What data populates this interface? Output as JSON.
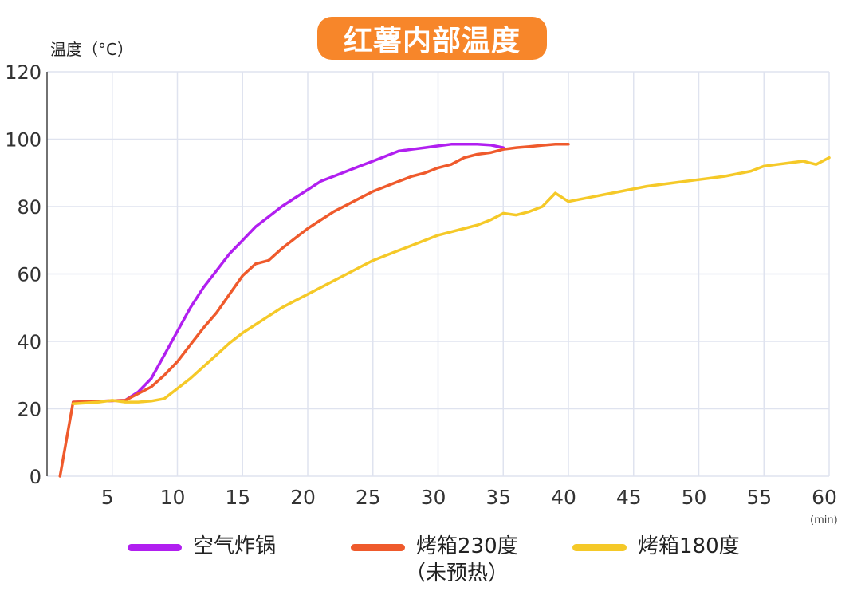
{
  "chart_data": {
    "type": "line",
    "title": "红薯内部温度",
    "ylabel": "温度（°C）",
    "xlabel": "(min)",
    "xlim": [
      0,
      60
    ],
    "ylim": [
      0,
      120
    ],
    "xticks": [
      5,
      10,
      15,
      20,
      25,
      30,
      35,
      40,
      45,
      50,
      55,
      60
    ],
    "yticks": [
      0,
      20,
      40,
      60,
      80,
      100,
      120
    ],
    "grid": true,
    "legend_position": "bottom",
    "colors": {
      "title_bg": "#f7862a",
      "grid": "#dfe3ef"
    },
    "series": [
      {
        "name": "空气炸锅",
        "color": "#b11ff0",
        "x": [
          2,
          6,
          7,
          8,
          9,
          10,
          11,
          12,
          13,
          14,
          15,
          16,
          17,
          18,
          19,
          20,
          21,
          22,
          23,
          24,
          25,
          26,
          27,
          28,
          29,
          30,
          31,
          32,
          33,
          34,
          35
        ],
        "y": [
          22,
          22.5,
          25,
          29,
          36,
          43,
          50,
          56,
          61,
          66,
          70,
          74,
          77,
          80,
          82.5,
          85,
          87.5,
          89,
          90.5,
          92,
          93.5,
          95,
          96.5,
          97,
          97.5,
          98,
          98.5,
          98.5,
          98.5,
          98.3,
          97.5
        ]
      },
      {
        "name": "烤箱230度（未预热）",
        "name_lines": [
          "烤箱230度",
          "（未预热）"
        ],
        "color": "#ef5a2c",
        "x": [
          1,
          2,
          6,
          7,
          8,
          9,
          10,
          11,
          12,
          13,
          14,
          15,
          16,
          17,
          18,
          19,
          20,
          21,
          22,
          23,
          24,
          25,
          26,
          27,
          28,
          29,
          30,
          31,
          32,
          33,
          34,
          35,
          36,
          37,
          38,
          39,
          40
        ],
        "y": [
          0,
          22,
          22.5,
          24.5,
          26.5,
          30,
          34,
          39,
          44,
          48.5,
          54,
          59.5,
          63,
          64,
          67.5,
          70.5,
          73.5,
          76,
          78.5,
          80.5,
          82.5,
          84.5,
          86,
          87.5,
          89,
          90,
          91.5,
          92.5,
          94.5,
          95.5,
          96,
          97,
          97.5,
          97.8,
          98.2,
          98.5,
          98.5
        ]
      },
      {
        "name": "烤箱180度",
        "color": "#f5c928",
        "x": [
          2,
          4,
          5,
          6,
          7,
          8,
          9,
          10,
          11,
          12,
          13,
          14,
          15,
          16,
          17,
          18,
          19,
          20,
          21,
          22,
          23,
          24,
          25,
          26,
          27,
          28,
          29,
          30,
          31,
          32,
          33,
          34,
          35,
          36,
          37,
          38,
          39,
          40,
          42,
          44,
          46,
          48,
          50,
          52,
          54,
          55,
          56,
          57,
          58,
          59,
          60
        ],
        "y": [
          21.5,
          22,
          22.5,
          22,
          22,
          22.3,
          23,
          26,
          29,
          32.5,
          36,
          39.5,
          42.5,
          45,
          47.5,
          50,
          52,
          54,
          56,
          58,
          60,
          62,
          64,
          65.5,
          67,
          68.5,
          70,
          71.5,
          72.5,
          73.5,
          74.5,
          76,
          78,
          77.5,
          78.5,
          80,
          84,
          81.5,
          83,
          84.5,
          86,
          87,
          88,
          89,
          90.5,
          92,
          92.5,
          93,
          93.5,
          92.5,
          94.5
        ]
      }
    ]
  }
}
